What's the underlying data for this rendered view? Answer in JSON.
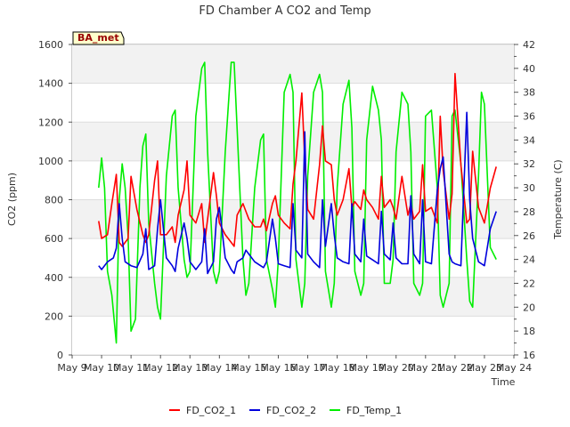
{
  "chart_data": {
    "type": "line",
    "title": "FD Chamber A CO2 and Temp",
    "badge": "BA_met",
    "xlabel": "Time",
    "ylabel_left": "CO2 (ppm)",
    "ylabel_right": "Temperature (C)",
    "ylim_left": [
      0,
      1600
    ],
    "ylim_right": [
      16,
      42
    ],
    "xlim": [
      9,
      24
    ],
    "x_tick_labels": [
      "May 9",
      "May 10",
      "May 11",
      "May 12",
      "May 13",
      "May 14",
      "May 15",
      "May 16",
      "May 17",
      "May 18",
      "May 19",
      "May 20",
      "May 21",
      "May 22",
      "May 23",
      "May 24"
    ],
    "y_left_ticks": [
      0,
      200,
      400,
      600,
      800,
      1000,
      1200,
      1400,
      1600
    ],
    "y_right_ticks": [
      16,
      18,
      20,
      22,
      24,
      26,
      28,
      30,
      32,
      34,
      36,
      38,
      40,
      42
    ],
    "grid": true,
    "background_bands": "alternating grey",
    "legend_position": "bottom",
    "series": [
      {
        "name": "FD_CO2_1",
        "axis": "left",
        "color": "#ff0000",
        "x": [
          9.9,
          10.0,
          10.1,
          10.2,
          10.35,
          10.5,
          10.6,
          10.7,
          10.8,
          10.9,
          11.0,
          11.2,
          11.4,
          11.5,
          11.6,
          11.8,
          11.9,
          12.0,
          12.2,
          12.4,
          12.5,
          12.6,
          12.8,
          12.9,
          13.0,
          13.2,
          13.4,
          13.5,
          13.6,
          13.8,
          13.9,
          14.0,
          14.2,
          14.4,
          14.5,
          14.6,
          14.8,
          14.9,
          15.0,
          15.2,
          15.4,
          15.5,
          15.6,
          15.8,
          15.9,
          16.0,
          16.2,
          16.4,
          16.5,
          16.6,
          16.8,
          16.9,
          17.0,
          17.2,
          17.4,
          17.5,
          17.6,
          17.8,
          17.9,
          18.0,
          18.2,
          18.4,
          18.5,
          18.6,
          18.8,
          18.9,
          19.0,
          19.2,
          19.4,
          19.5,
          19.6,
          19.8,
          19.9,
          20.0,
          20.2,
          20.4,
          20.5,
          20.6,
          20.8,
          20.9,
          21.0,
          21.2,
          21.4,
          21.5,
          21.6,
          21.8,
          21.9,
          22.0,
          22.2,
          22.4,
          22.5,
          22.6,
          22.8,
          22.9,
          23.0,
          23.2,
          23.4
        ],
        "y": [
          690,
          600,
          610,
          620,
          780,
          930,
          580,
          560,
          580,
          600,
          920,
          750,
          620,
          580,
          620,
          900,
          1000,
          620,
          620,
          660,
          580,
          720,
          850,
          1000,
          720,
          680,
          780,
          580,
          700,
          940,
          820,
          680,
          620,
          580,
          560,
          720,
          780,
          740,
          700,
          660,
          660,
          700,
          640,
          780,
          820,
          720,
          680,
          650,
          880,
          1000,
          1350,
          1000,
          750,
          700,
          980,
          1180,
          1000,
          980,
          800,
          720,
          800,
          960,
          760,
          790,
          750,
          850,
          800,
          760,
          700,
          920,
          760,
          800,
          760,
          700,
          920,
          720,
          780,
          700,
          740,
          980,
          740,
          760,
          680,
          1230,
          950,
          700,
          830,
          1450,
          980,
          680,
          700,
          1050,
          760,
          720,
          680,
          860,
          970
        ]
      },
      {
        "name": "FD_CO2_2",
        "axis": "left",
        "color": "#0000dd",
        "x": [
          9.9,
          10.0,
          10.2,
          10.4,
          10.5,
          10.6,
          10.7,
          10.8,
          11.0,
          11.2,
          11.4,
          11.5,
          11.6,
          11.8,
          11.9,
          12.0,
          12.2,
          12.4,
          12.5,
          12.6,
          12.8,
          12.9,
          13.0,
          13.2,
          13.4,
          13.5,
          13.6,
          13.8,
          13.9,
          14.0,
          14.2,
          14.4,
          14.5,
          14.6,
          14.8,
          14.9,
          15.0,
          15.2,
          15.4,
          15.5,
          15.6,
          15.8,
          15.9,
          16.0,
          16.2,
          16.4,
          16.5,
          16.6,
          16.8,
          16.9,
          17.0,
          17.2,
          17.4,
          17.5,
          17.6,
          17.8,
          17.9,
          18.0,
          18.2,
          18.4,
          18.5,
          18.6,
          18.8,
          18.9,
          19.0,
          19.2,
          19.4,
          19.5,
          19.6,
          19.8,
          19.9,
          20.0,
          20.2,
          20.4,
          20.5,
          20.6,
          20.8,
          20.9,
          21.0,
          21.2,
          21.4,
          21.5,
          21.6,
          21.8,
          21.9,
          22.0,
          22.2,
          22.4,
          22.5,
          22.6,
          22.8,
          22.9,
          23.0,
          23.2,
          23.4
        ],
        "y": [
          460,
          440,
          480,
          500,
          550,
          780,
          600,
          480,
          460,
          450,
          520,
          650,
          440,
          460,
          650,
          800,
          500,
          460,
          430,
          550,
          680,
          600,
          480,
          440,
          480,
          650,
          420,
          480,
          700,
          760,
          500,
          440,
          420,
          480,
          500,
          540,
          520,
          480,
          460,
          450,
          480,
          700,
          600,
          470,
          460,
          450,
          780,
          540,
          500,
          1150,
          520,
          480,
          450,
          800,
          560,
          780,
          620,
          500,
          480,
          470,
          780,
          520,
          480,
          700,
          510,
          490,
          470,
          740,
          520,
          490,
          680,
          500,
          470,
          470,
          820,
          520,
          470,
          800,
          480,
          470,
          850,
          960,
          1020,
          520,
          480,
          470,
          460,
          1250,
          800,
          600,
          480,
          470,
          460,
          650,
          740
        ]
      },
      {
        "name": "FD_Temp_1",
        "axis": "right",
        "color": "#00ee00",
        "x": [
          9.9,
          10.0,
          10.1,
          10.2,
          10.35,
          10.5,
          10.6,
          10.7,
          10.8,
          10.9,
          11.0,
          11.15,
          11.3,
          11.4,
          11.5,
          11.6,
          11.8,
          11.9,
          12.0,
          12.2,
          12.4,
          12.5,
          12.6,
          12.8,
          12.9,
          13.0,
          13.2,
          13.4,
          13.5,
          13.6,
          13.8,
          13.9,
          14.0,
          14.2,
          14.4,
          14.5,
          14.6,
          14.8,
          14.9,
          15.0,
          15.2,
          15.4,
          15.5,
          15.6,
          15.8,
          15.9,
          16.0,
          16.2,
          16.4,
          16.5,
          16.6,
          16.8,
          16.9,
          17.0,
          17.2,
          17.4,
          17.5,
          17.6,
          17.8,
          17.9,
          18.0,
          18.2,
          18.4,
          18.5,
          18.6,
          18.8,
          18.9,
          19.0,
          19.2,
          19.4,
          19.5,
          19.6,
          19.8,
          19.9,
          20.0,
          20.2,
          20.4,
          20.5,
          20.6,
          20.8,
          20.9,
          21.0,
          21.2,
          21.4,
          21.5,
          21.6,
          21.8,
          21.9,
          22.0,
          22.2,
          22.4,
          22.5,
          22.6,
          22.8,
          22.9,
          23.0,
          23.2,
          23.4
        ],
        "y": [
          30,
          32.5,
          30,
          23,
          21,
          17,
          29,
          32,
          30,
          26,
          18,
          19,
          30,
          33.5,
          34.5,
          27,
          22,
          20,
          19,
          31,
          36,
          36.5,
          30,
          24,
          22.5,
          23,
          36,
          40,
          40.5,
          33,
          23,
          22,
          23,
          33,
          40.5,
          40.5,
          35,
          24,
          21,
          22,
          30,
          34,
          34.5,
          24,
          21.5,
          20,
          24,
          38,
          39.5,
          38,
          24,
          20,
          22,
          31,
          38,
          39.5,
          38,
          23,
          20,
          22,
          30,
          37,
          39,
          35,
          23,
          21,
          22,
          34,
          38.5,
          36.5,
          34,
          22,
          22,
          24,
          33,
          38,
          37,
          33,
          22,
          21,
          22,
          36,
          36.5,
          30,
          21,
          20,
          22,
          36,
          36.5,
          32,
          24,
          20.5,
          20,
          31,
          38,
          37,
          25,
          24
        ]
      }
    ]
  }
}
